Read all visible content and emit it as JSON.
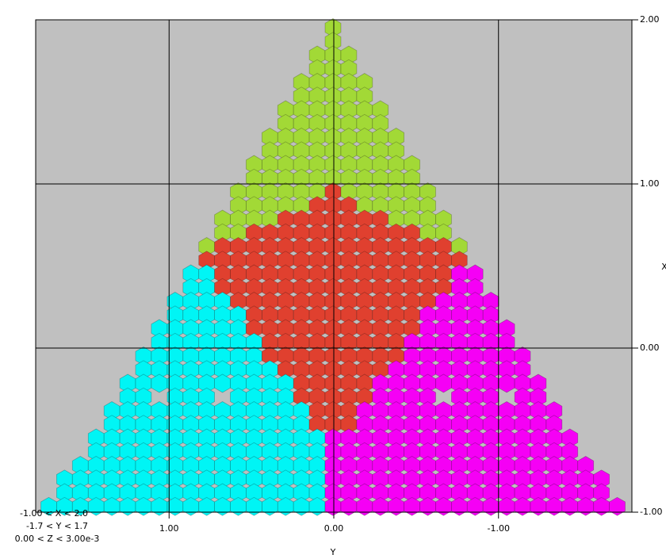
{
  "chart_data": {
    "type": "hexmap",
    "x_label": "Y",
    "y_label": "X",
    "xlim": [
      1.81,
      -1.81
    ],
    "ylim": [
      -1,
      2
    ],
    "xticks": [
      {
        "value": 1,
        "label": "1.00"
      },
      {
        "value": 0,
        "label": "0.00"
      },
      {
        "value": -1,
        "label": "-1.00"
      }
    ],
    "yticks": [
      {
        "value": -1,
        "label": "-1.00"
      },
      {
        "value": 0,
        "label": "0.00"
      },
      {
        "value": 1,
        "label": "1.00"
      },
      {
        "value": 2,
        "label": "2.00"
      }
    ],
    "grid": true,
    "background": "#c0c0c0",
    "region_colors": [
      "#a2d936",
      "#e0402f",
      "#00f5f5",
      "#f500f5"
    ],
    "annotations": [
      "-1.00 < X < 2.0",
      "-1.7 < Y < 1.7",
      "0.00 < Z < 3.00e-3"
    ]
  }
}
